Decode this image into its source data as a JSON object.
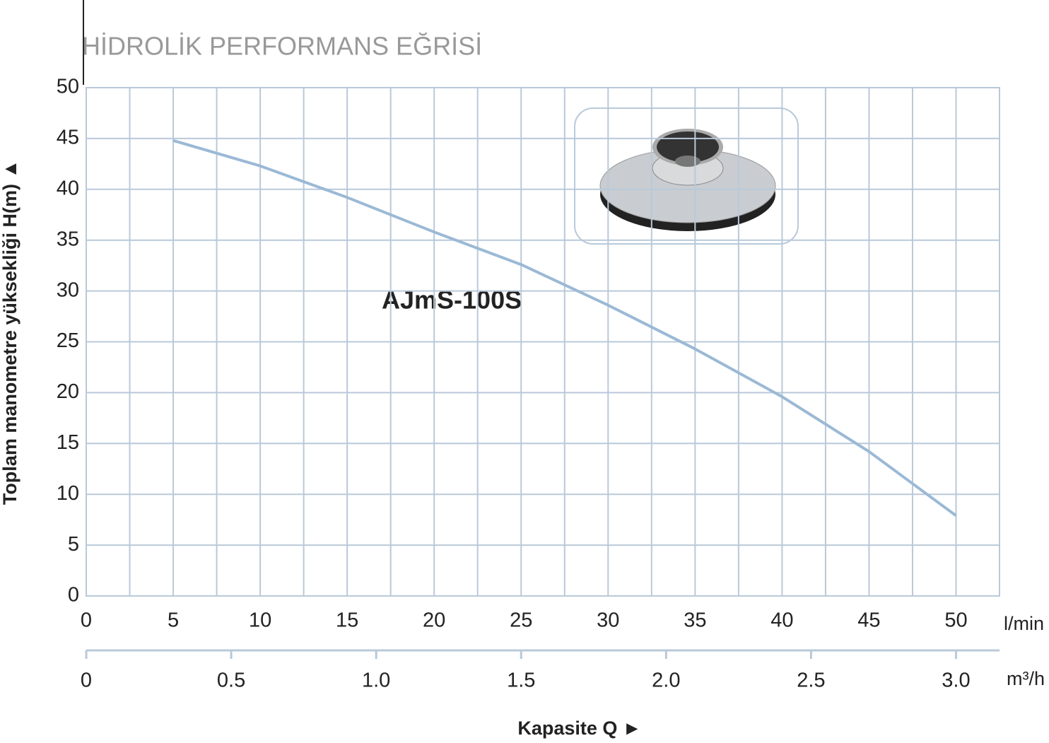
{
  "chart_data": {
    "type": "line",
    "title": "HİDROLİK PERFORMANS EĞRİSİ",
    "annotation": "AJmS-100S",
    "y_label": "Toplam manometre yüksekliği  H(m)  ▲",
    "x_label": "Kapasite Q  ►",
    "x_unit": "l/min",
    "x2_unit": "m³/h",
    "x": [
      5,
      10,
      15,
      20,
      25,
      30,
      35,
      40,
      45,
      50
    ],
    "series": [
      {
        "name": "AJmS-100S",
        "color": "#9bb9d5",
        "values": [
          44.8,
          42.3,
          39.2,
          35.8,
          32.6,
          28.6,
          24.3,
          19.6,
          14.2,
          7.9
        ]
      }
    ],
    "xlim": [
      0,
      52.5
    ],
    "xticks": [
      0,
      5,
      10,
      15,
      20,
      25,
      30,
      35,
      40,
      45,
      50
    ],
    "xminorticks": [
      2.5,
      7.5,
      12.5,
      17.5,
      22.5,
      27.5,
      32.5,
      37.5,
      42.5,
      47.5,
      52.5
    ],
    "ylim": [
      0,
      50
    ],
    "yticks": [
      0,
      5,
      10,
      15,
      20,
      25,
      30,
      35,
      40,
      45,
      50
    ],
    "x2lim": [
      0,
      3.15
    ],
    "x2ticks": [
      0,
      0.5,
      {
        "value": 1,
        "label": "1.0"
      },
      1.5,
      {
        "value": 2,
        "label": "2.0"
      },
      2.5,
      {
        "value": 3,
        "label": "3.0"
      }
    ],
    "grid": true,
    "grid_color": "#b9c9d9"
  }
}
